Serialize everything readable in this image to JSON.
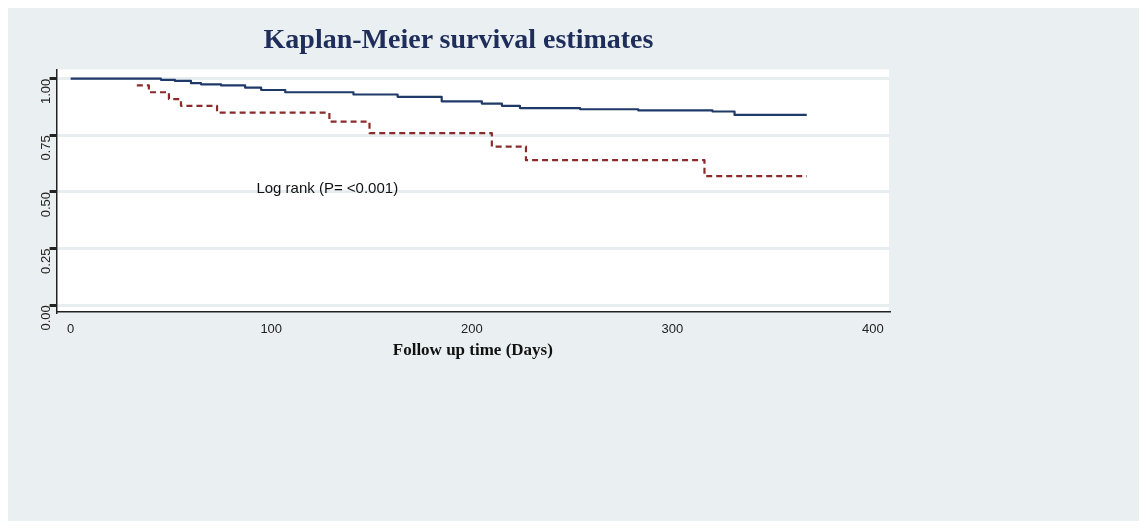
{
  "chart_data": {
    "type": "step",
    "title": "Kaplan-Meier survival estimates",
    "xlabel": "Follow up time (Days)",
    "xlim": [
      -7,
      408
    ],
    "xticks": [
      0,
      100,
      200,
      300,
      400
    ],
    "ylim": [
      -0.03,
      1.04
    ],
    "yticks": [
      {
        "value": 0,
        "label": "0.00"
      },
      {
        "value": 0.25,
        "label": "0.25"
      },
      {
        "value": 0.5,
        "label": "0.50"
      },
      {
        "value": 0.75,
        "label": "0.75"
      },
      {
        "value": 1,
        "label": "1.00"
      }
    ],
    "grid": "y",
    "legend": false,
    "annotations": [
      "Log rank (P= <0.001)"
    ],
    "series": [
      {
        "color": "#1f3a68",
        "line_style": "solid",
        "x": [
          0,
          38,
          45,
          52,
          60,
          65,
          75,
          87,
          95,
          107,
          141,
          163,
          185,
          205,
          215,
          224,
          254,
          283,
          320,
          331,
          367
        ],
        "values": [
          1,
          1,
          0.995,
          0.99,
          0.98,
          0.975,
          0.97,
          0.96,
          0.95,
          0.94,
          0.93,
          0.92,
          0.9,
          0.89,
          0.88,
          0.87,
          0.865,
          0.86,
          0.855,
          0.84,
          0.84
        ]
      },
      {
        "color": "#8b2a2a",
        "line_style": "dashed",
        "x": [
          33,
          39,
          49,
          55,
          73,
          129,
          149,
          210,
          227,
          316,
          367
        ],
        "values": [
          0.97,
          0.94,
          0.91,
          0.88,
          0.85,
          0.81,
          0.76,
          0.7,
          0.64,
          0.57,
          0.57
        ]
      }
    ]
  }
}
